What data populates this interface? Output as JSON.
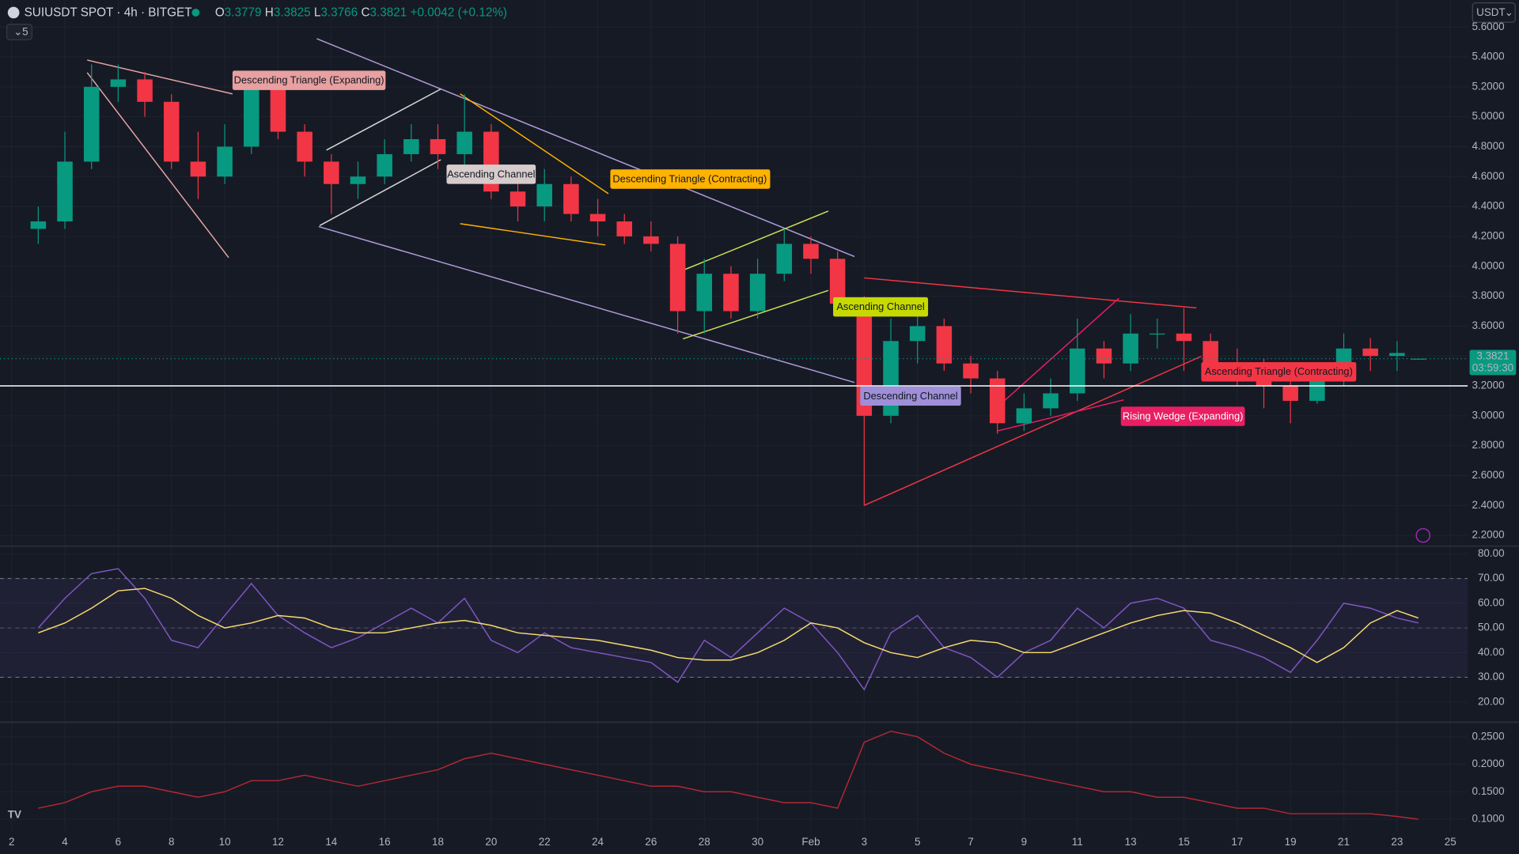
{
  "header": {
    "symbol": "SUIUSDT SPOT · 4h · BITGET",
    "ohlc": [
      {
        "label": "O",
        "value": 3.3779
      },
      {
        "label": "H",
        "value": 3.3825
      },
      {
        "label": "L",
        "value": 3.3766
      },
      {
        "label": "C",
        "value": 3.3821
      }
    ],
    "change": "+0.0042 (+0.12%)",
    "indicators": "5",
    "currency": "USDT"
  },
  "chart_data": [
    {
      "type": "candlestick",
      "x": [
        3,
        4,
        5,
        6,
        7,
        8,
        9,
        10,
        11,
        12,
        13,
        14,
        15,
        16,
        17,
        18,
        19,
        20,
        21,
        22,
        23,
        24,
        25,
        26,
        27,
        28,
        29,
        30,
        31,
        32,
        33,
        34,
        35,
        36,
        37,
        38,
        39,
        40,
        41,
        42,
        43,
        44,
        45,
        46,
        47,
        48,
        49,
        50,
        51,
        52,
        53,
        54,
        54.8
      ],
      "open": [
        4.25,
        4.3,
        4.7,
        5.2,
        5.25,
        5.1,
        4.7,
        4.6,
        4.8,
        5.2,
        4.9,
        4.7,
        4.55,
        4.6,
        4.75,
        4.85,
        4.75,
        4.9,
        4.5,
        4.4,
        4.55,
        4.35,
        4.3,
        4.2,
        4.15,
        3.7,
        3.95,
        3.7,
        3.95,
        4.15,
        4.05,
        3.75,
        3.0,
        3.5,
        3.6,
        3.35,
        3.25,
        2.95,
        3.05,
        3.15,
        3.45,
        3.35,
        3.55,
        3.55,
        3.5,
        3.35,
        3.3,
        3.2,
        3.1,
        3.25,
        3.45,
        3.4,
        3.3779
      ],
      "high": [
        4.4,
        4.9,
        5.35,
        5.35,
        5.3,
        5.15,
        4.9,
        4.95,
        5.3,
        5.25,
        4.95,
        4.75,
        4.7,
        4.85,
        4.95,
        4.95,
        5.15,
        4.95,
        4.6,
        4.65,
        4.6,
        4.45,
        4.35,
        4.3,
        4.2,
        4.05,
        4.0,
        4.05,
        4.25,
        4.2,
        4.1,
        3.8,
        3.65,
        3.75,
        3.65,
        3.4,
        3.3,
        3.15,
        3.25,
        3.65,
        3.5,
        3.68,
        3.65,
        3.72,
        3.55,
        3.45,
        3.38,
        3.25,
        3.35,
        3.55,
        3.52,
        3.5,
        3.3825
      ],
      "low": [
        4.15,
        4.25,
        4.65,
        5.1,
        5.0,
        4.65,
        4.45,
        4.55,
        4.75,
        4.85,
        4.6,
        4.35,
        4.45,
        4.55,
        4.7,
        4.65,
        4.65,
        4.45,
        4.3,
        4.3,
        4.3,
        4.2,
        4.15,
        4.1,
        3.55,
        3.55,
        3.65,
        3.65,
        3.9,
        3.95,
        3.7,
        2.4,
        2.95,
        3.35,
        3.3,
        3.15,
        2.88,
        2.9,
        3.0,
        3.1,
        3.25,
        3.3,
        3.45,
        3.3,
        3.25,
        3.2,
        3.05,
        2.95,
        3.08,
        3.2,
        3.3,
        3.3,
        3.3766
      ],
      "close": [
        4.3,
        4.7,
        5.2,
        5.25,
        5.1,
        4.7,
        4.6,
        4.8,
        5.2,
        4.9,
        4.7,
        4.55,
        4.6,
        4.75,
        4.85,
        4.75,
        4.9,
        4.5,
        4.4,
        4.55,
        4.35,
        4.3,
        4.2,
        4.15,
        3.7,
        3.95,
        3.7,
        3.95,
        4.15,
        4.05,
        3.75,
        3.0,
        3.5,
        3.6,
        3.35,
        3.25,
        2.95,
        3.05,
        3.15,
        3.45,
        3.35,
        3.55,
        3.55,
        3.5,
        3.35,
        3.3,
        3.2,
        3.1,
        3.25,
        3.45,
        3.4,
        3.42,
        3.3821
      ],
      "up_color": "#089981",
      "down_color": "#f23645",
      "xlim": [
        1.564,
        56.65
      ],
      "ylim": [
        2.135,
        5.768
      ],
      "yticks": [
        {
          "value": 2.2,
          "label": "2.2000"
        },
        {
          "value": 2.4,
          "label": "2.4000"
        },
        {
          "value": 2.6,
          "label": "2.6000"
        },
        {
          "value": 2.8,
          "label": "2.8000"
        },
        {
          "value": 3.0,
          "label": "3.0000"
        },
        {
          "value": 3.2,
          "label": "3.2000"
        },
        {
          "value": 3.4,
          "label": "3.4000"
        },
        {
          "value": 3.6,
          "label": "3.6000"
        },
        {
          "value": 3.8,
          "label": "3.8000"
        },
        {
          "value": 4.0,
          "label": "4.0000"
        },
        {
          "value": 4.2,
          "label": "4.2000"
        },
        {
          "value": 4.4,
          "label": "4.4000"
        },
        {
          "value": 4.6,
          "label": "4.6000"
        },
        {
          "value": 4.8,
          "label": "4.8000"
        },
        {
          "value": 5.0,
          "label": "5.0000"
        },
        {
          "value": 5.2,
          "label": "5.2000"
        },
        {
          "value": 5.4,
          "label": "5.4000"
        },
        {
          "value": 5.6,
          "label": "5.6000"
        }
      ],
      "grid": true,
      "hline": 3.2,
      "countdown": "03:59:30",
      "annotations": [
        "Descending Triangle (Expanding)",
        "Ascending Channel",
        "Descending Triangle (Contracting)",
        "Ascending Channel",
        "Descending Channel",
        "Rising Wedge (Expanding)",
        "Ascending Triangle (Contracting)"
      ]
    },
    {
      "type": "line",
      "x": [
        3,
        4,
        5,
        6,
        7,
        8,
        9,
        10,
        11,
        12,
        13,
        14,
        15,
        16,
        17,
        18,
        19,
        20,
        21,
        22,
        23,
        24,
        25,
        26,
        27,
        28,
        29,
        30,
        31,
        32,
        33,
        34,
        35,
        36,
        37,
        38,
        39,
        40,
        41,
        42,
        43,
        44,
        45,
        46,
        47,
        48,
        49,
        50,
        51,
        52,
        53,
        54,
        54.8
      ],
      "series": [
        {
          "color": "#7e57c2",
          "values": [
            50,
            62,
            72,
            74,
            62,
            45,
            42,
            55,
            68,
            55,
            48,
            42,
            46,
            52,
            58,
            52,
            62,
            45,
            40,
            48,
            42,
            40,
            38,
            36,
            28,
            45,
            38,
            48,
            58,
            52,
            40,
            25,
            48,
            55,
            42,
            38,
            30,
            40,
            45,
            58,
            50,
            60,
            62,
            58,
            45,
            42,
            38,
            32,
            45,
            60,
            58,
            54,
            52
          ]
        },
        {
          "color": "#f7dd6d",
          "values": [
            48,
            52,
            58,
            65,
            66,
            62,
            55,
            50,
            52,
            55,
            54,
            50,
            48,
            48,
            50,
            52,
            53,
            51,
            48,
            47,
            46,
            45,
            43,
            41,
            38,
            37,
            37,
            40,
            45,
            52,
            50,
            44,
            40,
            38,
            42,
            45,
            44,
            40,
            40,
            44,
            48,
            52,
            55,
            57,
            56,
            52,
            47,
            42,
            36,
            42,
            52,
            57,
            54
          ]
        }
      ],
      "xlim": [
        1.564,
        56.65
      ],
      "ylim": [
        12.16,
        82.35
      ],
      "yticks": [
        {
          "value": 20,
          "label": "20.00"
        },
        {
          "value": 30,
          "label": "30.00"
        },
        {
          "value": 40,
          "label": "40.00"
        },
        {
          "value": 50,
          "label": "50.00"
        },
        {
          "value": 60,
          "label": "60.00"
        },
        {
          "value": 70,
          "label": "70.00"
        },
        {
          "value": 80,
          "label": "80.00"
        }
      ],
      "grid": true,
      "band": [
        30,
        70
      ],
      "midline": 50
    },
    {
      "type": "line",
      "x": [
        3,
        4,
        5,
        6,
        7,
        8,
        9,
        10,
        11,
        12,
        13,
        14,
        15,
        16,
        17,
        18,
        19,
        20,
        21,
        22,
        23,
        24,
        25,
        26,
        27,
        28,
        29,
        30,
        31,
        32,
        33,
        34,
        35,
        36,
        37,
        38,
        39,
        40,
        41,
        42,
        43,
        44,
        45,
        46,
        47,
        48,
        49,
        50,
        51,
        52,
        53,
        54,
        54.8
      ],
      "series": [
        {
          "color": "#b22833",
          "values": [
            0.12,
            0.13,
            0.15,
            0.16,
            0.16,
            0.15,
            0.14,
            0.15,
            0.17,
            0.17,
            0.18,
            0.17,
            0.16,
            0.17,
            0.18,
            0.19,
            0.21,
            0.22,
            0.21,
            0.2,
            0.19,
            0.18,
            0.17,
            0.16,
            0.16,
            0.15,
            0.15,
            0.14,
            0.13,
            0.13,
            0.12,
            0.24,
            0.26,
            0.25,
            0.22,
            0.2,
            0.19,
            0.18,
            0.17,
            0.16,
            0.15,
            0.15,
            0.14,
            0.14,
            0.13,
            0.12,
            0.12,
            0.11,
            0.11,
            0.11,
            0.11,
            0.105,
            0.1
          ]
        }
      ],
      "xlim": [
        1.564,
        56.65
      ],
      "ylim": [
        0.079,
        0.2727
      ],
      "yticks": [
        {
          "value": 0.1,
          "label": "0.1000"
        },
        {
          "value": 0.15,
          "label": "0.1500"
        },
        {
          "value": 0.2,
          "label": "0.2000"
        },
        {
          "value": 0.25,
          "label": "0.2500"
        }
      ],
      "grid": true,
      "xticks": [
        2,
        4,
        6,
        8,
        10,
        12,
        14,
        16,
        18,
        20,
        22,
        24,
        26,
        28,
        30,
        {
          "value": 32,
          "label": "Feb"
        },
        {
          "value": 34,
          "label": "3"
        },
        {
          "value": 36,
          "label": "5"
        },
        {
          "value": 38,
          "label": "7"
        },
        {
          "value": 40,
          "label": "9"
        },
        {
          "value": 42,
          "label": "11"
        },
        {
          "value": 44,
          "label": "13"
        },
        {
          "value": 46,
          "label": "15"
        },
        {
          "value": 48,
          "label": "17"
        },
        {
          "value": 50,
          "label": "19"
        },
        {
          "value": 52,
          "label": "21"
        },
        {
          "value": 54,
          "label": "23"
        },
        {
          "value": 56,
          "label": "25"
        }
      ]
    }
  ]
}
